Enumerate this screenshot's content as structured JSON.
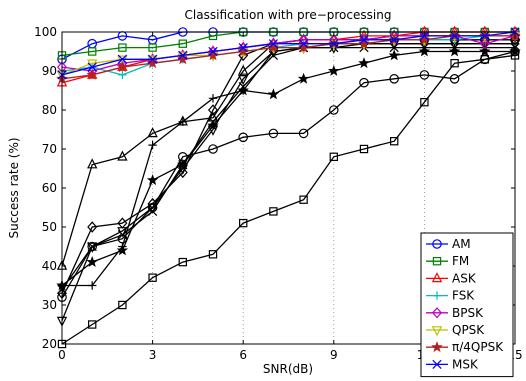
{
  "chart_data": {
    "type": "line",
    "title": "Classification with pre−processing",
    "xlabel": "SNR(dB)",
    "ylabel": "Success rate (%)",
    "xlim": [
      0,
      15
    ],
    "ylim": [
      20,
      100
    ],
    "xticks": [
      0,
      3,
      6,
      9,
      12,
      15
    ],
    "yticks": [
      20,
      30,
      40,
      50,
      60,
      70,
      80,
      90,
      100
    ],
    "grid": "dotted vertical lines at x = 3, 6, 9, 12",
    "legend_position": "bottom-right",
    "x": [
      0,
      1,
      2,
      3,
      4,
      5,
      6,
      7,
      8,
      9,
      10,
      11,
      12,
      13,
      14,
      15
    ],
    "series": [
      {
        "name": "AM",
        "color": "#0000ff",
        "marker": "circle",
        "values": [
          93,
          97,
          99,
          98,
          100,
          100,
          100,
          100,
          100,
          100,
          100,
          100,
          100,
          100,
          100,
          100
        ]
      },
      {
        "name": "FM",
        "color": "#008000",
        "marker": "square",
        "values": [
          94,
          95,
          96,
          96,
          97,
          99,
          100,
          100,
          100,
          100,
          100,
          100,
          100,
          100,
          100,
          100
        ]
      },
      {
        "name": "ASK",
        "color": "#ff0000",
        "marker": "triangle",
        "values": [
          87,
          89,
          91,
          93,
          94,
          95,
          96,
          97,
          98,
          98,
          99,
          99,
          100,
          100,
          100,
          100
        ]
      },
      {
        "name": "FSK",
        "color": "#00bfbf",
        "marker": "plus",
        "values": [
          90,
          91,
          89,
          92,
          93,
          94,
          95,
          96,
          97,
          97,
          98,
          98,
          98,
          98,
          99,
          99
        ]
      },
      {
        "name": "BPSK",
        "color": "#bf00bf",
        "marker": "diamond",
        "values": [
          91,
          90,
          92,
          93,
          94,
          95,
          96,
          97,
          98,
          98,
          98,
          99,
          99,
          99,
          97,
          99
        ]
      },
      {
        "name": "QPSK",
        "color": "#bfbf00",
        "marker": "triangle-down",
        "values": [
          89,
          92,
          93,
          93,
          94,
          94,
          95,
          96,
          96,
          97,
          97,
          98,
          98,
          99,
          99,
          99
        ]
      },
      {
        "name": "π/4QPSK",
        "color": "#b22222",
        "marker": "star",
        "values": [
          88,
          89,
          91,
          92,
          93,
          94,
          95,
          96,
          96,
          97,
          97,
          98,
          98,
          99,
          99,
          99
        ]
      },
      {
        "name": "MSK",
        "color": "#0000ff",
        "marker": "x",
        "values": [
          89,
          91,
          93,
          93,
          94,
          95,
          96,
          97,
          97,
          97,
          98,
          98,
          99,
          99,
          99,
          100
        ]
      },
      {
        "name": "",
        "color": "#000000",
        "marker": "circle",
        "values": [
          32,
          45,
          47,
          55,
          68,
          70,
          73,
          74,
          74,
          80,
          87,
          88,
          89,
          88,
          93,
          95
        ]
      },
      {
        "name": "",
        "color": "#000000",
        "marker": "square",
        "values": [
          20,
          25,
          30,
          37,
          41,
          43,
          51,
          54,
          57,
          68,
          70,
          72,
          82,
          92,
          93,
          94
        ]
      },
      {
        "name": "",
        "color": "#000000",
        "marker": "triangle",
        "values": [
          40,
          66,
          68,
          74,
          77,
          78,
          90,
          97,
          98,
          98,
          98,
          99,
          99,
          99,
          99,
          99
        ]
      },
      {
        "name": "",
        "color": "#000000",
        "marker": "plus",
        "values": [
          35,
          35,
          45,
          71,
          77,
          83,
          85,
          95,
          96,
          97,
          97,
          97,
          97,
          97,
          97,
          97
        ]
      },
      {
        "name": "",
        "color": "#000000",
        "marker": "diamond",
        "values": [
          33,
          50,
          51,
          56,
          64,
          80,
          94,
          97,
          98,
          98,
          98,
          98,
          98,
          98,
          98,
          98
        ]
      },
      {
        "name": "",
        "color": "#000000",
        "marker": "triangle-down",
        "values": [
          26,
          45,
          49,
          55,
          65,
          75,
          88,
          95,
          96,
          96,
          97,
          97,
          97,
          97,
          97,
          97
        ]
      },
      {
        "name": "",
        "color": "#000000",
        "marker": "star",
        "values": [
          35,
          41,
          44,
          62,
          66,
          76,
          85,
          84,
          88,
          90,
          92,
          94,
          95,
          95,
          95,
          95
        ]
      },
      {
        "name": "",
        "color": "#000000",
        "marker": "x",
        "values": [
          34,
          45,
          48,
          54,
          66,
          77,
          86,
          94,
          96,
          96,
          96,
          96,
          96,
          96,
          96,
          96
        ]
      }
    ]
  }
}
